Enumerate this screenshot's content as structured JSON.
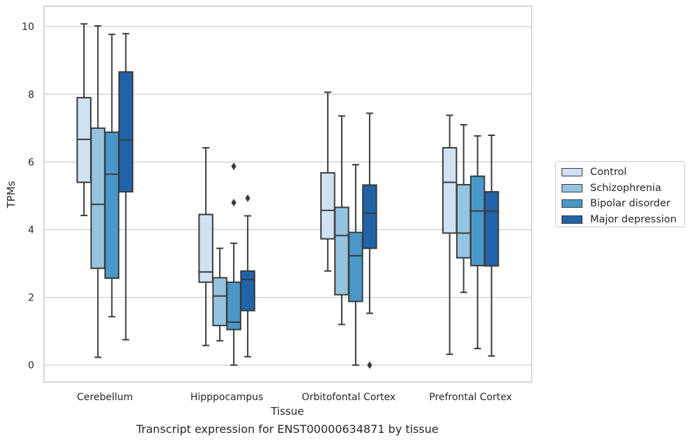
{
  "chart_data": {
    "type": "box",
    "title": "",
    "xlabel": "Tissue",
    "ylabel": "TPMs",
    "caption": "Transcript expression for ENST00000634871 by tissue",
    "ylim": [
      -0.5,
      10.6
    ],
    "yticks": [
      0,
      2,
      4,
      6,
      8,
      10
    ],
    "grid": true,
    "legend_position": "right",
    "categories": [
      "Cerebellum",
      "Hipppocampus",
      "Orbitofontal Cortex",
      "Prefrontal Cortex"
    ],
    "series": [
      {
        "name": "Control",
        "color": "#d0e1f2",
        "boxes": [
          {
            "whisker_low": 4.42,
            "q1": 5.4,
            "median": 6.67,
            "q3": 7.9,
            "whisker_high": 10.08,
            "outliers": []
          },
          {
            "whisker_low": 0.58,
            "q1": 2.45,
            "median": 2.75,
            "q3": 4.45,
            "whisker_high": 6.42,
            "outliers": []
          },
          {
            "whisker_low": 2.78,
            "q1": 3.73,
            "median": 4.57,
            "q3": 5.68,
            "whisker_high": 8.06,
            "outliers": []
          },
          {
            "whisker_low": 0.32,
            "q1": 3.9,
            "median": 5.4,
            "q3": 6.42,
            "whisker_high": 7.38,
            "outliers": []
          }
        ]
      },
      {
        "name": "Schizophrenia",
        "color": "#94c4df",
        "boxes": [
          {
            "whisker_low": 0.23,
            "q1": 2.86,
            "median": 4.75,
            "q3": 7.0,
            "whisker_high": 10.02,
            "outliers": []
          },
          {
            "whisker_low": 0.72,
            "q1": 1.17,
            "median": 2.04,
            "q3": 2.58,
            "whisker_high": 3.45,
            "outliers": []
          },
          {
            "whisker_low": 1.2,
            "q1": 2.08,
            "median": 3.83,
            "q3": 4.66,
            "whisker_high": 7.36,
            "outliers": []
          },
          {
            "whisker_low": 2.15,
            "q1": 3.17,
            "median": 3.9,
            "q3": 5.33,
            "whisker_high": 7.1,
            "outliers": []
          }
        ]
      },
      {
        "name": "Bipolar disorder",
        "color": "#4a98c9",
        "boxes": [
          {
            "whisker_low": 1.43,
            "q1": 2.57,
            "median": 5.64,
            "q3": 6.88,
            "whisker_high": 9.77,
            "outliers": []
          },
          {
            "whisker_low": 0.0,
            "q1": 1.05,
            "median": 1.27,
            "q3": 2.45,
            "whisker_high": 3.6,
            "outliers": [
              4.8,
              5.87
            ]
          },
          {
            "whisker_low": 0.0,
            "q1": 1.88,
            "median": 3.23,
            "q3": 3.92,
            "whisker_high": 5.92,
            "outliers": []
          },
          {
            "whisker_low": 0.49,
            "q1": 2.94,
            "median": 4.55,
            "q3": 5.58,
            "whisker_high": 6.77,
            "outliers": []
          }
        ]
      },
      {
        "name": "Major depression",
        "color": "#2163a8",
        "boxes": [
          {
            "whisker_low": 0.75,
            "q1": 5.12,
            "median": 6.65,
            "q3": 8.66,
            "whisker_high": 9.79,
            "outliers": []
          },
          {
            "whisker_low": 0.25,
            "q1": 1.61,
            "median": 2.53,
            "q3": 2.78,
            "whisker_high": 4.41,
            "outliers": [
              4.93
            ]
          },
          {
            "whisker_low": 1.53,
            "q1": 3.45,
            "median": 4.49,
            "q3": 5.32,
            "whisker_high": 7.44,
            "outliers": [
              0.0
            ]
          },
          {
            "whisker_low": 0.27,
            "q1": 2.93,
            "median": 4.55,
            "q3": 5.12,
            "whisker_high": 6.79,
            "outliers": []
          }
        ]
      }
    ]
  }
}
